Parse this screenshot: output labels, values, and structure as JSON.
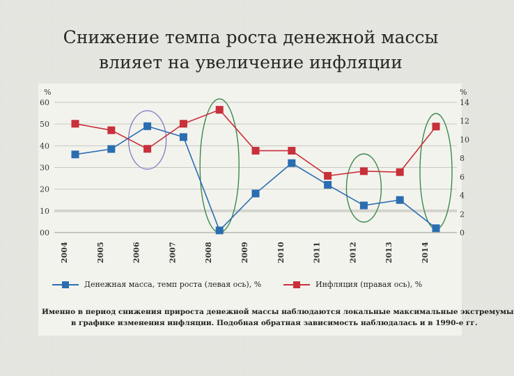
{
  "slide": {
    "title_line1": "Снижение темпа роста денежной массы",
    "title_line2": "влияет на увеличение инфляции"
  },
  "caption": {
    "line1": "Именно в период снижения прироста денежной массы наблюдаются локальные максимальные экстремумы",
    "line2": "в графике изменения инфляции. Подобная обратная зависимость наблюдалась и в 1990-е гг."
  },
  "chart_data": {
    "type": "line",
    "x": [
      "2004",
      "2005",
      "2006",
      "2007",
      "2008",
      "2009",
      "2010",
      "2011",
      "2012",
      "2013",
      "2014"
    ],
    "left_axis": {
      "label": "%",
      "ticks": [
        "60",
        "50",
        "40",
        "30",
        "20",
        "10",
        "00"
      ],
      "ylim": [
        0,
        60
      ]
    },
    "right_axis": {
      "label": "%",
      "ticks": [
        "14",
        "12",
        "10",
        "8",
        "6",
        "4",
        "2",
        "0"
      ],
      "ylim": [
        0,
        14
      ]
    },
    "series": [
      {
        "name": "Денежная масса, темп роста (левая ось), %",
        "axis": "left",
        "color": "#2a6db0",
        "values": [
          36,
          38.5,
          49,
          44,
          1,
          18,
          32,
          22,
          12.5,
          15,
          2
        ]
      },
      {
        "name": "Инфляция (правая ось), %",
        "axis": "right",
        "color": "#c8303a",
        "values": [
          11.7,
          11,
          9,
          11.7,
          13.2,
          8.8,
          8.8,
          6.1,
          6.6,
          6.5,
          11.4
        ]
      }
    ],
    "highlights": [
      {
        "year": "2006",
        "color": "#8a80c4"
      },
      {
        "year": "2008",
        "color": "#3b8a4a"
      },
      {
        "year": "2012",
        "color": "#3b8a4a"
      },
      {
        "year": "2014",
        "color": "#3b8a4a"
      }
    ],
    "grid": true,
    "legend_position": "bottom"
  }
}
